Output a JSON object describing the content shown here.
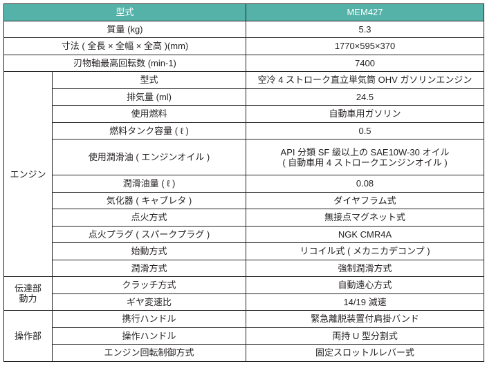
{
  "header": {
    "label": "型式",
    "value": "MEM427",
    "color": "#55b2a8"
  },
  "top_rows": [
    {
      "label": "質量 (kg)",
      "value": "5.3"
    },
    {
      "label": "寸法 ( 全長 × 全幅 × 全高 )(mm)",
      "value": "1770×595×370"
    },
    {
      "label": "刃物軸最高回転数 (min-1)",
      "value": "7400"
    }
  ],
  "groups": [
    {
      "name": "エンジン",
      "rows": [
        {
          "label": "型式",
          "value": "空冷 4 ストローク直立単気筒 OHV ガソリンエンジン"
        },
        {
          "label": "排気量 (ml)",
          "value": "24.5"
        },
        {
          "label": "使用燃料",
          "value": "自動車用ガソリン"
        },
        {
          "label": "燃料タンク容量 ( ℓ )",
          "value": "0.5"
        },
        {
          "label": "使用潤滑油 ( エンジンオイル )",
          "value": "API 分類 SF 級以上の SAE10W-30 オイル",
          "value2": "( 自動車用 4 ストロークエンジンオイル )"
        },
        {
          "label": "潤滑油量 ( ℓ )",
          "value": "0.08"
        },
        {
          "label": "気化器 ( キャブレタ )",
          "value": "ダイヤフラム式"
        },
        {
          "label": "点火方式",
          "value": "無接点マグネット式"
        },
        {
          "label": "点火プラグ ( スパークプラグ )",
          "value": "NGK CMR4A"
        },
        {
          "label": "始動方式",
          "value": "リコイル式 ( メカニカデコンプ )"
        },
        {
          "label": "潤滑方式",
          "value": "強制潤滑方式"
        }
      ]
    },
    {
      "name": "伝達部",
      "name2": "動力",
      "rows": [
        {
          "label": "クラッチ方式",
          "value": "自動遠心方式"
        },
        {
          "label": "ギヤ変速比",
          "value": "14/19 減速"
        }
      ]
    },
    {
      "name": "操作部",
      "rows": [
        {
          "label": "携行ハンドル",
          "value": "緊急離脱装置付肩掛バンド"
        },
        {
          "label": "操作ハンドル",
          "value": "両持 U 型分割式"
        },
        {
          "label": "エンジン回転制御方式",
          "value": "固定スロットルレバー式"
        }
      ]
    }
  ]
}
